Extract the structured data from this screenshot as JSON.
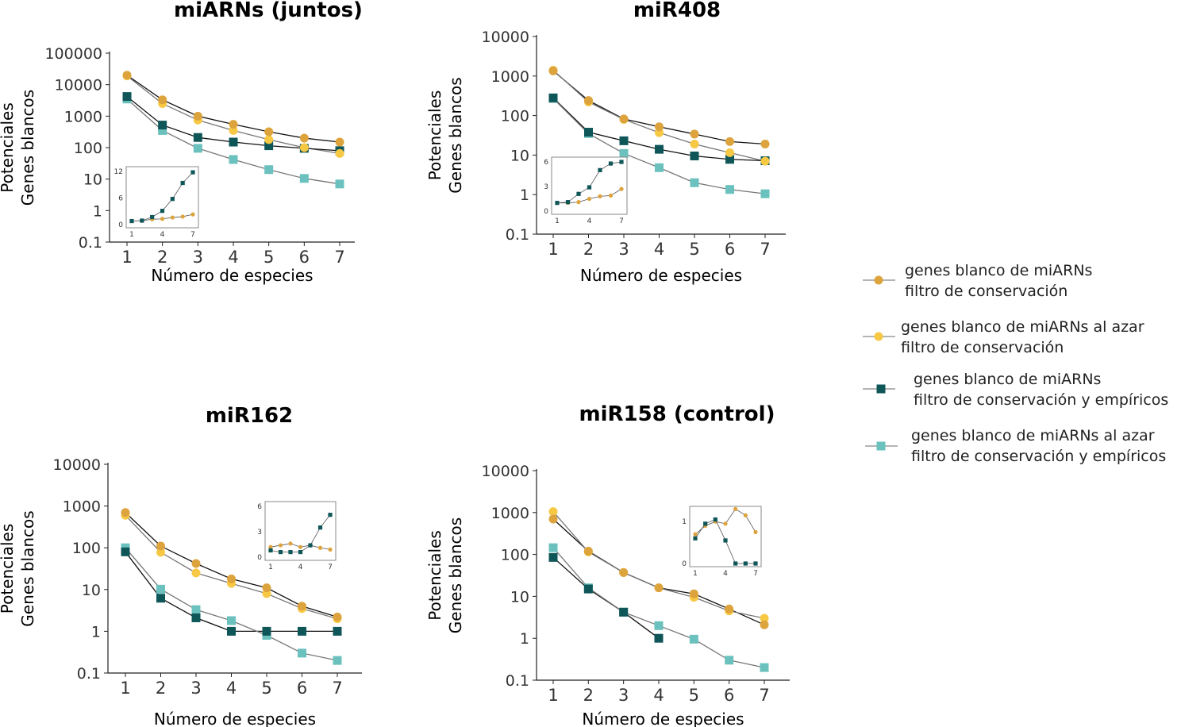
{
  "colors": {
    "orange": "#DDA33C",
    "yellow": "#F7C844",
    "dark_teal": "#0F5659",
    "light_teal": "#6BC1BD",
    "line_black": "#111111",
    "line_gray": "#777777"
  },
  "legend": [
    {
      "lines": [
        "genes blanco de miARNs",
        "filtro de conservación"
      ],
      "marker": "circle",
      "color": "orange"
    },
    {
      "lines": [
        "genes blanco de miARNs al azar",
        "filtro de conservación"
      ],
      "marker": "circle",
      "color": "yellow"
    },
    {
      "lines": [
        "genes blanco de miARNs",
        "filtro de conservación y empíricos"
      ],
      "marker": "square",
      "color": "dark_teal"
    },
    {
      "lines": [
        "genes blanco de miARNs al azar",
        "filtro de conservación y empíricos"
      ],
      "marker": "square",
      "color": "light_teal"
    }
  ],
  "chart_data": [
    {
      "type": "line",
      "title": "miARNs (juntos)",
      "xlabel": "Número de especies",
      "ylabel": [
        "Potenciales",
        "Genes blancos"
      ],
      "yscale": "log",
      "ylim": [
        0.1,
        100000
      ],
      "yticks": [
        "0.1",
        "1",
        "10",
        "100",
        "1000",
        "10000",
        "100000"
      ],
      "x": [
        1,
        2,
        3,
        4,
        5,
        6,
        7
      ],
      "series": [
        {
          "values": [
            20000,
            3300,
            1000,
            550,
            320,
            200,
            150
          ]
        },
        {
          "values": [
            19000,
            2500,
            750,
            350,
            180,
            100,
            65
          ]
        },
        {
          "values": [
            4200,
            520,
            210,
            150,
            115,
            95,
            80
          ]
        },
        {
          "values": [
            3500,
            350,
            95,
            42,
            20,
            10.5,
            7
          ]
        }
      ],
      "inset": {
        "type": "line",
        "x": [
          1,
          2,
          3,
          4,
          5,
          6,
          7
        ],
        "ylim": [
          0,
          12
        ],
        "yticks": [
          "0",
          "6",
          "12"
        ],
        "xticks": [
          "1",
          "4",
          "7"
        ],
        "series": [
          {
            "values": [
              0.8,
              0.9,
              1.2,
              1.3,
              1.6,
              1.8,
              2.3
            ]
          },
          {
            "values": [
              0.8,
              0.9,
              1.7,
              3.1,
              5.8,
              9.4,
              11.8
            ]
          }
        ]
      }
    },
    {
      "type": "line",
      "title": "miR408",
      "xlabel": "Número de especies",
      "ylabel": [
        "Potenciales",
        "Genes blancos"
      ],
      "yscale": "log",
      "ylim": [
        0.1,
        10000
      ],
      "yticks": [
        "0.1",
        "1",
        "10",
        "100",
        "1000",
        "10000"
      ],
      "x": [
        1,
        2,
        3,
        4,
        5,
        6,
        7
      ],
      "series": [
        {
          "values": [
            1350,
            240,
            82,
            52,
            34,
            22,
            19
          ]
        },
        {
          "values": [
            1400,
            220,
            80,
            37,
            19,
            11.5,
            7
          ]
        },
        {
          "values": [
            280,
            38,
            23,
            14,
            9.5,
            7.8,
            7.2
          ]
        },
        {
          "values": [
            270,
            35,
            11,
            4.8,
            2.0,
            1.35,
            1.05
          ]
        }
      ],
      "inset": {
        "type": "line",
        "x": [
          1,
          2,
          3,
          4,
          5,
          6,
          7
        ],
        "ylim": [
          0,
          6
        ],
        "yticks": [
          "0",
          "3",
          "6"
        ],
        "xticks": [
          "1",
          "4",
          "7"
        ],
        "series": [
          {
            "values": [
              1.0,
              1.0,
              1.1,
              1.5,
              1.8,
              1.9,
              2.7
            ]
          },
          {
            "values": [
              1.0,
              1.1,
              2.1,
              2.9,
              5.0,
              5.8,
              6.0
            ]
          }
        ]
      }
    },
    {
      "type": "line",
      "title": "miR162",
      "xlabel": "Número de especies",
      "ylabel": [
        "Potenciales",
        "Genes blancos"
      ],
      "yscale": "log",
      "ylim": [
        0.1,
        10000
      ],
      "yticks": [
        "0.1",
        "1",
        "10",
        "100",
        "1000",
        "10000"
      ],
      "x": [
        1,
        2,
        3,
        4,
        5,
        6,
        7
      ],
      "series": [
        {
          "values": [
            700,
            110,
            42,
            18,
            11,
            4,
            2.2
          ]
        },
        {
          "values": [
            600,
            78,
            25,
            14,
            8,
            3.5,
            2
          ]
        },
        {
          "values": [
            80,
            6.2,
            2.1,
            1.0,
            1.0,
            1.0,
            1.0
          ]
        },
        {
          "values": [
            100,
            10.2,
            3.3,
            1.8,
            0.8,
            0.3,
            0.2
          ]
        }
      ],
      "inset": {
        "type": "line",
        "x": [
          1,
          2,
          3,
          4,
          5,
          6,
          7
        ],
        "ylim": [
          0,
          6
        ],
        "yticks": [
          "0",
          "3",
          "6"
        ],
        "xticks": [
          "1",
          "4",
          "7"
        ],
        "series": [
          {
            "values": [
              1.2,
              1.4,
              1.6,
              1.2,
              1.4,
              1.1,
              0.9
            ]
          },
          {
            "values": [
              0.8,
              0.6,
              0.6,
              0.6,
              1.4,
              3.5,
              5.0
            ]
          }
        ]
      }
    },
    {
      "type": "line",
      "title": "miR158 (control)",
      "xlabel": "Número de especies",
      "ylabel": [
        "Potenciales",
        "Genes blancos"
      ],
      "yscale": "log",
      "ylim": [
        0.1,
        10000
      ],
      "yticks": [
        "0.1",
        "1",
        "10",
        "100",
        "1000",
        "10000"
      ],
      "x": [
        1,
        2,
        3,
        4,
        5,
        6,
        7
      ],
      "series": [
        {
          "values": [
            700,
            120,
            37,
            16,
            11.5,
            5,
            2.1
          ]
        },
        {
          "values": [
            1050,
            115,
            37,
            16,
            9.5,
            4.5,
            3
          ]
        },
        {
          "values": [
            85,
            15,
            4.2,
            1.0,
            null,
            null,
            null
          ]
        },
        {
          "values": [
            145,
            16,
            4.2,
            2.0,
            0.95,
            0.3,
            0.2
          ]
        }
      ],
      "inset": {
        "type": "line",
        "x": [
          1,
          2,
          3,
          4,
          5,
          6,
          7
        ],
        "ylim": [
          0,
          1.25
        ],
        "yticks": [
          "0",
          "1"
        ],
        "xticks": [
          "1",
          "4",
          "7"
        ],
        "series": [
          {
            "values": [
              0.7,
              0.9,
              1.0,
              0.95,
              1.3,
              1.15,
              0.75
            ]
          },
          {
            "values": [
              0.6,
              0.95,
              1.05,
              0.55,
              0,
              0,
              0
            ]
          }
        ]
      }
    }
  ]
}
